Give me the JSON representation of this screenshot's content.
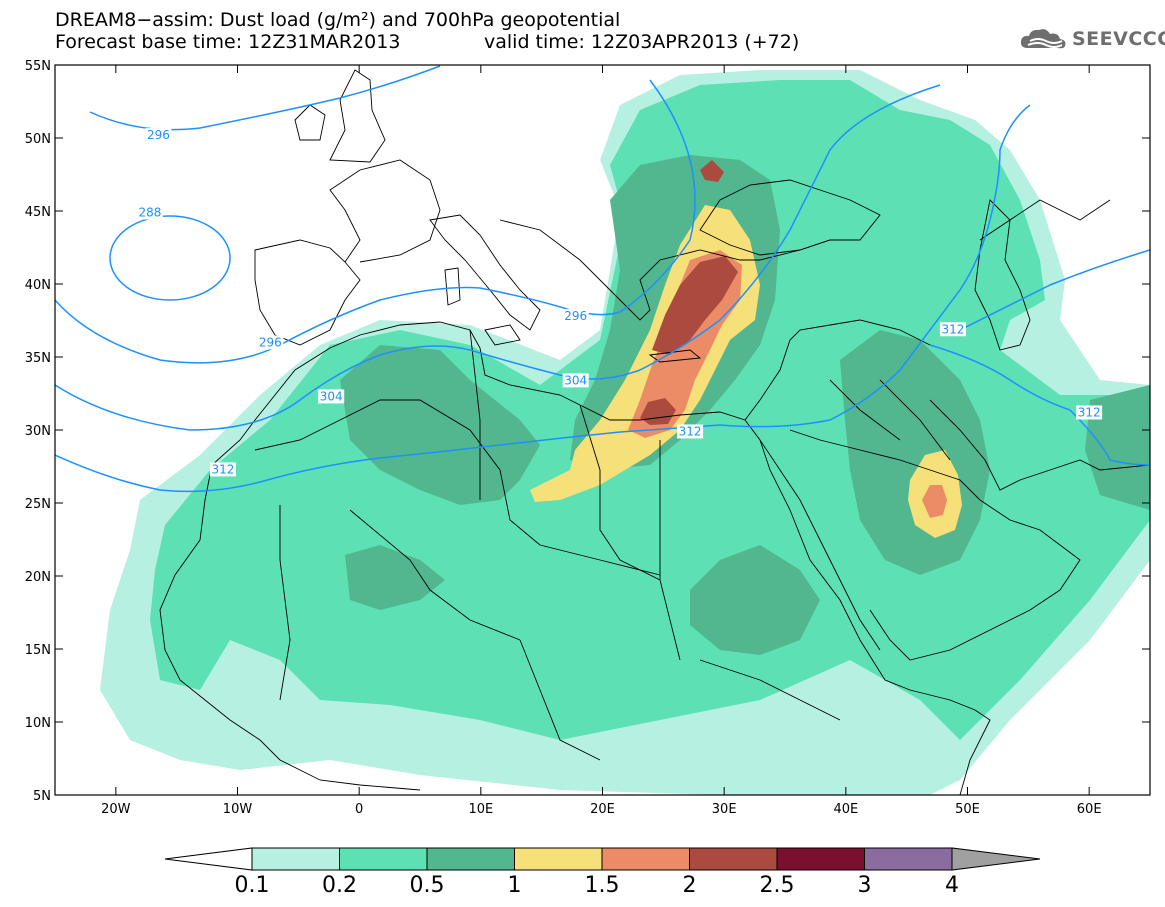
{
  "title": {
    "line1": "DREAM8−assim: Dust load (g/m²) and 700hPa geopotential",
    "line2_left": "Forecast base time: 12Z31MAR2013",
    "line2_right": "valid time: 12Z03APR2013 (+72)"
  },
  "logo": {
    "text": "SEEVCCC",
    "icon": "cloud-icon"
  },
  "map": {
    "lon_range": [
      -25,
      65
    ],
    "lat_range": [
      5,
      55
    ],
    "lon_ticks": [
      {
        "value": -20,
        "label": "20W"
      },
      {
        "value": -10,
        "label": "10W"
      },
      {
        "value": 0,
        "label": "0"
      },
      {
        "value": 10,
        "label": "10E"
      },
      {
        "value": 20,
        "label": "20E"
      },
      {
        "value": 30,
        "label": "30E"
      },
      {
        "value": 40,
        "label": "40E"
      },
      {
        "value": 50,
        "label": "50E"
      },
      {
        "value": 60,
        "label": "60E"
      }
    ],
    "lat_ticks": [
      {
        "value": 55,
        "label": "55N"
      },
      {
        "value": 50,
        "label": "50N"
      },
      {
        "value": 45,
        "label": "45N"
      },
      {
        "value": 40,
        "label": "40N"
      },
      {
        "value": 35,
        "label": "35N"
      },
      {
        "value": 30,
        "label": "30N"
      },
      {
        "value": 25,
        "label": "25N"
      },
      {
        "value": 20,
        "label": "20N"
      },
      {
        "value": 15,
        "label": "15N"
      },
      {
        "value": 10,
        "label": "10N"
      },
      {
        "value": 5,
        "label": "5N"
      }
    ],
    "contour_color": "#1e90ff",
    "contour_labels": [
      {
        "text": "296",
        "lon": -16.5,
        "lat": 50.2
      },
      {
        "text": "288",
        "lon": -17.2,
        "lat": 44.9
      },
      {
        "text": "296",
        "lon": -7.3,
        "lat": 36.0
      },
      {
        "text": "304",
        "lon": -2.3,
        "lat": 32.3
      },
      {
        "text": "312",
        "lon": -11.2,
        "lat": 27.3
      },
      {
        "text": "296",
        "lon": 17.8,
        "lat": 37.8
      },
      {
        "text": "304",
        "lon": 17.8,
        "lat": 33.4
      },
      {
        "text": "312",
        "lon": 27.2,
        "lat": 29.9
      },
      {
        "text": "312",
        "lon": 48.8,
        "lat": 36.9
      },
      {
        "text": "312",
        "lon": 60.0,
        "lat": 31.2
      }
    ]
  },
  "colorbar": {
    "levels": [
      "0.1",
      "0.2",
      "0.5",
      "1",
      "1.5",
      "2",
      "2.5",
      "3",
      "4"
    ],
    "colors": [
      "#b5f0e0",
      "#5ce0b4",
      "#52b68e",
      "#f5e07a",
      "#ec8c66",
      "#ab4b40",
      "#7a1030",
      "#8b6c9f"
    ],
    "under_color": "#ffffff",
    "over_color": "#a0a0a0"
  }
}
